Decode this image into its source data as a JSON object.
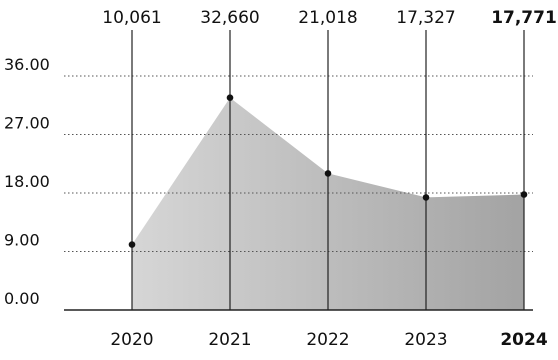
{
  "chart_data": {
    "type": "area",
    "categories": [
      "2020",
      "2021",
      "2022",
      "2023",
      "2024"
    ],
    "series": [
      {
        "values": [
          10.061,
          32.66,
          21.018,
          17.327,
          17.771
        ],
        "labels": [
          "10,061",
          "32,660",
          "21,018",
          "17,327",
          "17,771"
        ]
      }
    ],
    "highlight_category": "2024",
    "y_ticks": [
      "0.00",
      "9.00",
      "18.00",
      "27.00",
      "36.00"
    ],
    "ylim": [
      0,
      36
    ],
    "title": "",
    "xlabel": "",
    "ylabel": "",
    "grid": true,
    "colors": {
      "area_left": "#d6d6d6",
      "area_right": "#a3a3a3",
      "line": "#222222",
      "grid": "#555555",
      "point": "#111111"
    }
  }
}
